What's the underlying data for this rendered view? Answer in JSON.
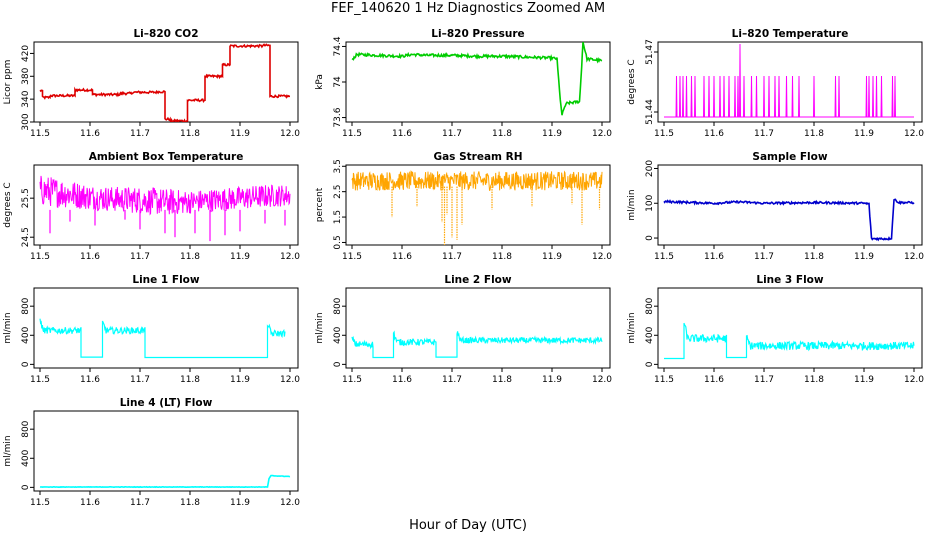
{
  "figure": {
    "title": "FEF_140620  1 Hz Diagnostics Zoomed AM",
    "xlabel": "Hour of Day (UTC)"
  },
  "chart_data": [
    {
      "type": "line",
      "title": "Li–820 CO2",
      "ylabel": "Licor ppm",
      "color": "#dd0000",
      "xlim": [
        11.5,
        12.0
      ],
      "xticks": [
        11.5,
        11.6,
        11.7,
        11.8,
        11.9,
        12.0
      ],
      "ylim": [
        300,
        440
      ],
      "yticks": [
        300,
        340,
        380,
        420
      ],
      "noise": 2,
      "x": [
        11.5,
        11.505,
        11.505,
        11.52,
        11.52,
        11.57,
        11.57,
        11.605,
        11.605,
        11.66,
        11.66,
        11.685,
        11.685,
        11.735,
        11.735,
        11.75,
        11.75,
        11.76,
        11.76,
        11.795,
        11.795,
        11.83,
        11.83,
        11.865,
        11.865,
        11.88,
        11.88,
        11.945,
        11.945,
        11.96,
        11.96,
        12.0
      ],
      "y": [
        355,
        355,
        343,
        343,
        346,
        346,
        356,
        356,
        348,
        348,
        350,
        350,
        352,
        352,
        353,
        353,
        305,
        305,
        302,
        302,
        338,
        338,
        380,
        380,
        400,
        400,
        433,
        433,
        434,
        434,
        345,
        345
      ]
    },
    {
      "type": "line",
      "title": "Li–820 Pressure",
      "ylabel": "kPa",
      "color": "#00cc00",
      "xlim": [
        11.5,
        12.0
      ],
      "xticks": [
        11.5,
        11.6,
        11.7,
        11.8,
        11.9,
        12.0
      ],
      "ylim": [
        73.55,
        74.45
      ],
      "yticks": [
        73.6,
        74.0,
        74.4
      ],
      "noise": 0.015,
      "x": [
        11.5,
        11.51,
        11.55,
        11.6,
        11.62,
        11.65,
        11.7,
        11.75,
        11.8,
        11.85,
        11.9,
        11.91,
        11.915,
        11.92,
        11.925,
        11.93,
        11.955,
        11.958,
        11.962,
        11.97,
        12.0
      ],
      "y": [
        74.25,
        74.31,
        74.3,
        74.29,
        74.31,
        74.3,
        74.3,
        74.29,
        74.29,
        74.28,
        74.27,
        74.26,
        73.9,
        73.62,
        73.72,
        73.76,
        73.78,
        74.05,
        74.45,
        74.26,
        74.24
      ]
    },
    {
      "type": "line",
      "title": "Li–820 Temperature",
      "ylabel": "degrees C",
      "color": "#ff00ff",
      "xlim": [
        11.5,
        12.0
      ],
      "xticks": [
        11.5,
        11.6,
        11.7,
        11.8,
        11.9,
        12.0
      ],
      "ylim": [
        51.435,
        51.475
      ],
      "yticks": [
        51.44,
        51.47
      ],
      "ytick_labels": [
        "51.44",
        "51.47"
      ],
      "baseline": 51.4375,
      "spike_top": 51.458,
      "max_spike": 51.474,
      "max_spike_x": 11.652,
      "spikes": [
        11.525,
        11.532,
        11.538,
        11.545,
        11.555,
        11.562,
        11.58,
        11.59,
        11.6,
        11.612,
        11.62,
        11.63,
        11.642,
        11.648,
        11.66,
        11.675,
        11.685,
        11.7,
        11.71,
        11.722,
        11.73,
        11.745,
        11.757,
        11.77,
        11.8,
        11.843,
        11.85,
        11.905,
        11.91,
        11.918,
        11.925,
        11.935,
        11.957,
        11.962
      ]
    },
    {
      "type": "line",
      "title": "Ambient Box Temperature",
      "ylabel": "degrees C",
      "color": "#ff00ff",
      "xlim": [
        11.5,
        12.0
      ],
      "xticks": [
        11.5,
        11.6,
        11.7,
        11.8,
        11.9,
        12.0
      ],
      "ylim": [
        24.3,
        26.35
      ],
      "yticks": [
        24.5,
        25.5
      ],
      "band_top": [
        26.1,
        26.0,
        25.85,
        25.8,
        25.8,
        25.75,
        25.7,
        25.75,
        25.8,
        25.85,
        25.85
      ],
      "band_bottom": [
        25.3,
        25.25,
        25.2,
        25.15,
        25.1,
        25.05,
        25.1,
        25.15,
        25.2,
        25.25,
        25.3
      ],
      "dips": [
        [
          11.52,
          24.6
        ],
        [
          11.56,
          24.9
        ],
        [
          11.61,
          24.8
        ],
        [
          11.67,
          24.95
        ],
        [
          11.7,
          24.7
        ],
        [
          11.75,
          24.6
        ],
        [
          11.77,
          24.5
        ],
        [
          11.81,
          24.6
        ],
        [
          11.84,
          24.4
        ],
        [
          11.87,
          24.55
        ],
        [
          11.9,
          24.65
        ],
        [
          11.95,
          24.85
        ],
        [
          11.99,
          24.8
        ]
      ]
    },
    {
      "type": "line",
      "title": "Gas Stream RH",
      "ylabel": "percent",
      "color": "#ffa500",
      "xlim": [
        11.5,
        12.0
      ],
      "xticks": [
        11.5,
        11.6,
        11.7,
        11.8,
        11.9,
        12.0
      ],
      "ylim": [
        0.4,
        3.55
      ],
      "yticks": [
        0.5,
        1.5,
        2.5,
        3.5
      ],
      "ytick_labels": [
        "0.5",
        "1.5",
        "2.5",
        "3.5"
      ],
      "band": [
        2.55,
        3.3
      ],
      "dips": [
        [
          11.58,
          1.5
        ],
        [
          11.63,
          1.9
        ],
        [
          11.68,
          1.3
        ],
        [
          11.685,
          0.4
        ],
        [
          11.69,
          1.6
        ],
        [
          11.7,
          0.7
        ],
        [
          11.71,
          0.6
        ],
        [
          11.72,
          1.2
        ],
        [
          11.78,
          1.8
        ],
        [
          11.86,
          1.9
        ],
        [
          11.94,
          2.0
        ],
        [
          11.96,
          1.2
        ],
        [
          11.995,
          1.8
        ]
      ]
    },
    {
      "type": "line",
      "title": "Sample Flow",
      "ylabel": "ml/min",
      "color": "#0000cc",
      "xlim": [
        11.5,
        12.0
      ],
      "xticks": [
        11.5,
        11.6,
        11.7,
        11.8,
        11.9,
        12.0
      ],
      "ylim": [
        -20,
        210
      ],
      "yticks": [
        0,
        100,
        200
      ],
      "noise": 3,
      "x": [
        11.5,
        11.6,
        11.65,
        11.7,
        11.8,
        11.85,
        11.9,
        11.91,
        11.915,
        11.95,
        11.955,
        11.96,
        11.97,
        12.0
      ],
      "y": [
        105,
        100,
        104,
        100,
        102,
        101,
        100,
        98,
        -2,
        -2,
        0,
        112,
        102,
        102
      ]
    },
    {
      "type": "line",
      "title": "Line 1 Flow",
      "ylabel": "ml/min",
      "color": "#00ffff",
      "xlim": [
        11.5,
        12.0
      ],
      "xticks": [
        11.5,
        11.6,
        11.7,
        11.8,
        11.9,
        12.0
      ],
      "ylim": [
        -50,
        1050
      ],
      "yticks": [
        0,
        400,
        800
      ],
      "segments": [
        [
          11.5,
          11.582,
          420,
          90,
          130
        ],
        [
          11.582,
          11.625,
          100,
          0,
          0
        ],
        [
          11.625,
          11.71,
          420,
          90,
          110
        ],
        [
          11.71,
          11.955,
          95,
          0,
          0
        ],
        [
          11.955,
          11.99,
          380,
          90,
          140
        ]
      ]
    },
    {
      "type": "line",
      "title": "Line 2 Flow",
      "ylabel": "ml/min",
      "color": "#00ffff",
      "xlim": [
        11.5,
        12.0
      ],
      "xticks": [
        11.5,
        11.6,
        11.7,
        11.8,
        11.9,
        12.0
      ],
      "ylim": [
        -50,
        1050
      ],
      "yticks": [
        0,
        400,
        800
      ],
      "segments": [
        [
          11.5,
          11.542,
          230,
          90,
          80
        ],
        [
          11.542,
          11.583,
          95,
          0,
          0
        ],
        [
          11.583,
          11.668,
          260,
          90,
          130
        ],
        [
          11.668,
          11.71,
          100,
          0,
          0
        ],
        [
          11.71,
          12.0,
          290,
          80,
          120
        ]
      ]
    },
    {
      "type": "line",
      "title": "Line 3 Flow",
      "ylabel": "ml/min",
      "color": "#00ffff",
      "xlim": [
        11.5,
        12.0
      ],
      "xticks": [
        11.5,
        11.6,
        11.7,
        11.8,
        11.9,
        12.0
      ],
      "ylim": [
        -50,
        1050
      ],
      "yticks": [
        0,
        400,
        800
      ],
      "segments": [
        [
          11.5,
          11.54,
          80,
          0,
          0
        ],
        [
          11.54,
          11.625,
          300,
          110,
          220
        ],
        [
          11.625,
          11.665,
          95,
          0,
          0
        ],
        [
          11.665,
          12.0,
          200,
          110,
          120
        ]
      ]
    },
    {
      "type": "line",
      "title": "Line 4 (LT) Flow",
      "ylabel": "ml/min",
      "color": "#00ffff",
      "xlim": [
        11.5,
        12.0
      ],
      "xticks": [
        11.5,
        11.6,
        11.7,
        11.8,
        11.9,
        12.0
      ],
      "ylim": [
        -50,
        1050
      ],
      "yticks": [
        0,
        400,
        800
      ],
      "noise": 3,
      "x": [
        11.5,
        11.955,
        11.958,
        11.962,
        12.0
      ],
      "y": [
        5,
        5,
        120,
        160,
        150
      ]
    }
  ]
}
